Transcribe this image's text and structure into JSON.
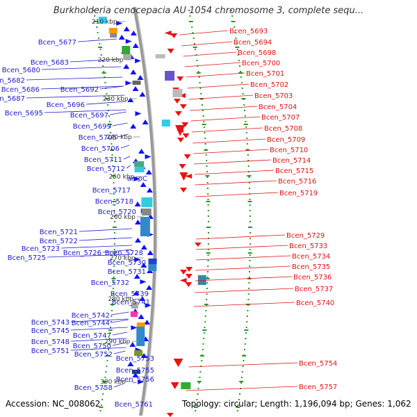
{
  "title": "Burkholderia cenocepacia AU 1054 chromosome 3, complete sequ...",
  "footer": {
    "accession": "Accession: NC_008062",
    "stats": "Topology: circular; Length: 1,196,094 bp; Genes: 1,062"
  },
  "colors": {
    "left_label": "#1a1acc",
    "right_label": "#e01010",
    "plus_strand": "#1010ff",
    "minus_strand": "#ee1111",
    "backbone": "#9a9a9a",
    "ticks": "#229922"
  },
  "kbp_ticks": [
    "210 kbp",
    "220 kbp",
    "230 kbp",
    "240 kbp",
    "250 kbp",
    "260 kbp",
    "270 kbp",
    "280 kbp",
    "290 kbp",
    "300 kbp"
  ],
  "left_genes": [
    "Bcen_5677",
    "Bcen_5680",
    "Bcen_5683",
    "Bcen_5682",
    "Bcen_5686",
    "Bcen_5692",
    "Bcen_5687",
    "Bcen_5696",
    "Bcen_5695",
    "Bcen_5697",
    "Bcen_5699",
    "Bcen_5705",
    "Bcen_5706",
    "Bcen_5711",
    "Bcen_5712",
    "ampC",
    "Bcen_5717",
    "Bcen_5718",
    "Bcen_5720",
    "Bcen_5721",
    "Bcen_5722",
    "Bcen_5723",
    "Bcen_5726",
    "Bcen_5728",
    "Bcen_5725",
    "Bcen_5730",
    "Bcen_5731",
    "Bcen_5732",
    "Bcen_5739",
    "Bcen_5741",
    "Bcen_5742",
    "Bcen_5743",
    "Bcen_5744",
    "Bcen_5745",
    "Bcen_5747",
    "Bcen_5748",
    "Bcen_5750",
    "Bcen_5751",
    "Bcen_5752",
    "Bcen_5753",
    "Bcen_5755",
    "Bcen_5756",
    "Bcen_5758",
    "Bcen_5761"
  ],
  "right_genes": [
    "Bcen_5693",
    "Bcen_5694",
    "Bcen_5698",
    "Bcen_5700",
    "Bcen_5701",
    "Bcen_5702",
    "Bcen_5703",
    "Bcen_5704",
    "Bcen_5707",
    "Bcen_5708",
    "Bcen_5709",
    "Bcen_5710",
    "Bcen_5714",
    "Bcen_5715",
    "Bcen_5716",
    "Bcen_5719",
    "Bcen_5729",
    "Bcen_5733",
    "Bcen_5734",
    "Bcen_5735",
    "Bcen_5736",
    "Bcen_5737",
    "Bcen_5740",
    "Bcen_5754",
    "Bcen_5757"
  ]
}
